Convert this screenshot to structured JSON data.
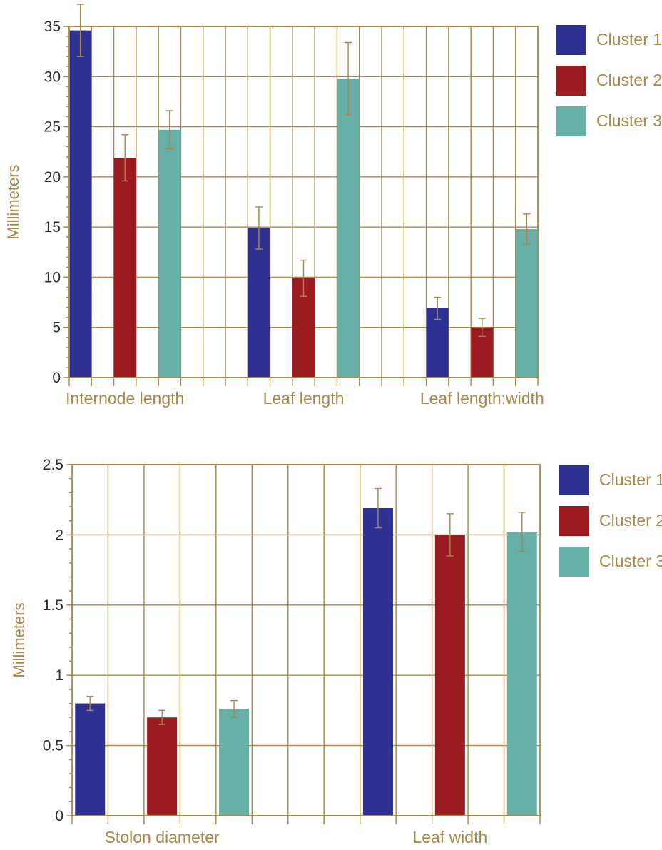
{
  "colors": {
    "cluster_1": "#2e3191",
    "cluster_2": "#9a1c20",
    "cluster_3": "#66b0a8",
    "axis_and_grid": "#a8874a"
  },
  "chart_data": [
    {
      "type": "bar",
      "ylabel": "Millimeters",
      "ylim": [
        0,
        35
      ],
      "yticks": [
        "0",
        "5",
        "10",
        "15",
        "20",
        "25",
        "30",
        "35"
      ],
      "grid": true,
      "legend_position": "right",
      "categories": [
        "Internode length",
        "Leaf length",
        "Leaf length:width"
      ],
      "series": [
        {
          "name": "Cluster 1",
          "color": "#2e3191",
          "values": [
            34.6,
            14.9,
            6.9
          ],
          "errors": [
            2.6,
            2.1,
            1.1
          ]
        },
        {
          "name": "Cluster 2",
          "color": "#9a1c20",
          "values": [
            21.9,
            9.9,
            5.0
          ],
          "errors": [
            2.3,
            1.8,
            0.9
          ]
        },
        {
          "name": "Cluster 3",
          "color": "#66b0a8",
          "values": [
            24.7,
            29.8,
            14.8
          ],
          "errors": [
            1.9,
            3.6,
            1.5
          ]
        }
      ]
    },
    {
      "type": "bar",
      "ylabel": "Millimeters",
      "ylim": [
        0,
        2.5
      ],
      "yticks": [
        "0",
        "0.5",
        "1",
        "1.5",
        "2",
        "2.5"
      ],
      "grid": true,
      "legend_position": "right",
      "categories": [
        "Stolon diameter",
        "Leaf width"
      ],
      "series": [
        {
          "name": "Cluster 1",
          "color": "#2e3191",
          "values": [
            0.8,
            2.19
          ],
          "errors": [
            0.05,
            0.14
          ]
        },
        {
          "name": "Cluster 2",
          "color": "#9a1c20",
          "values": [
            0.7,
            2.0
          ],
          "errors": [
            0.05,
            0.15
          ]
        },
        {
          "name": "Cluster 3",
          "color": "#66b0a8",
          "values": [
            0.76,
            2.02
          ],
          "errors": [
            0.06,
            0.14
          ]
        }
      ]
    }
  ]
}
